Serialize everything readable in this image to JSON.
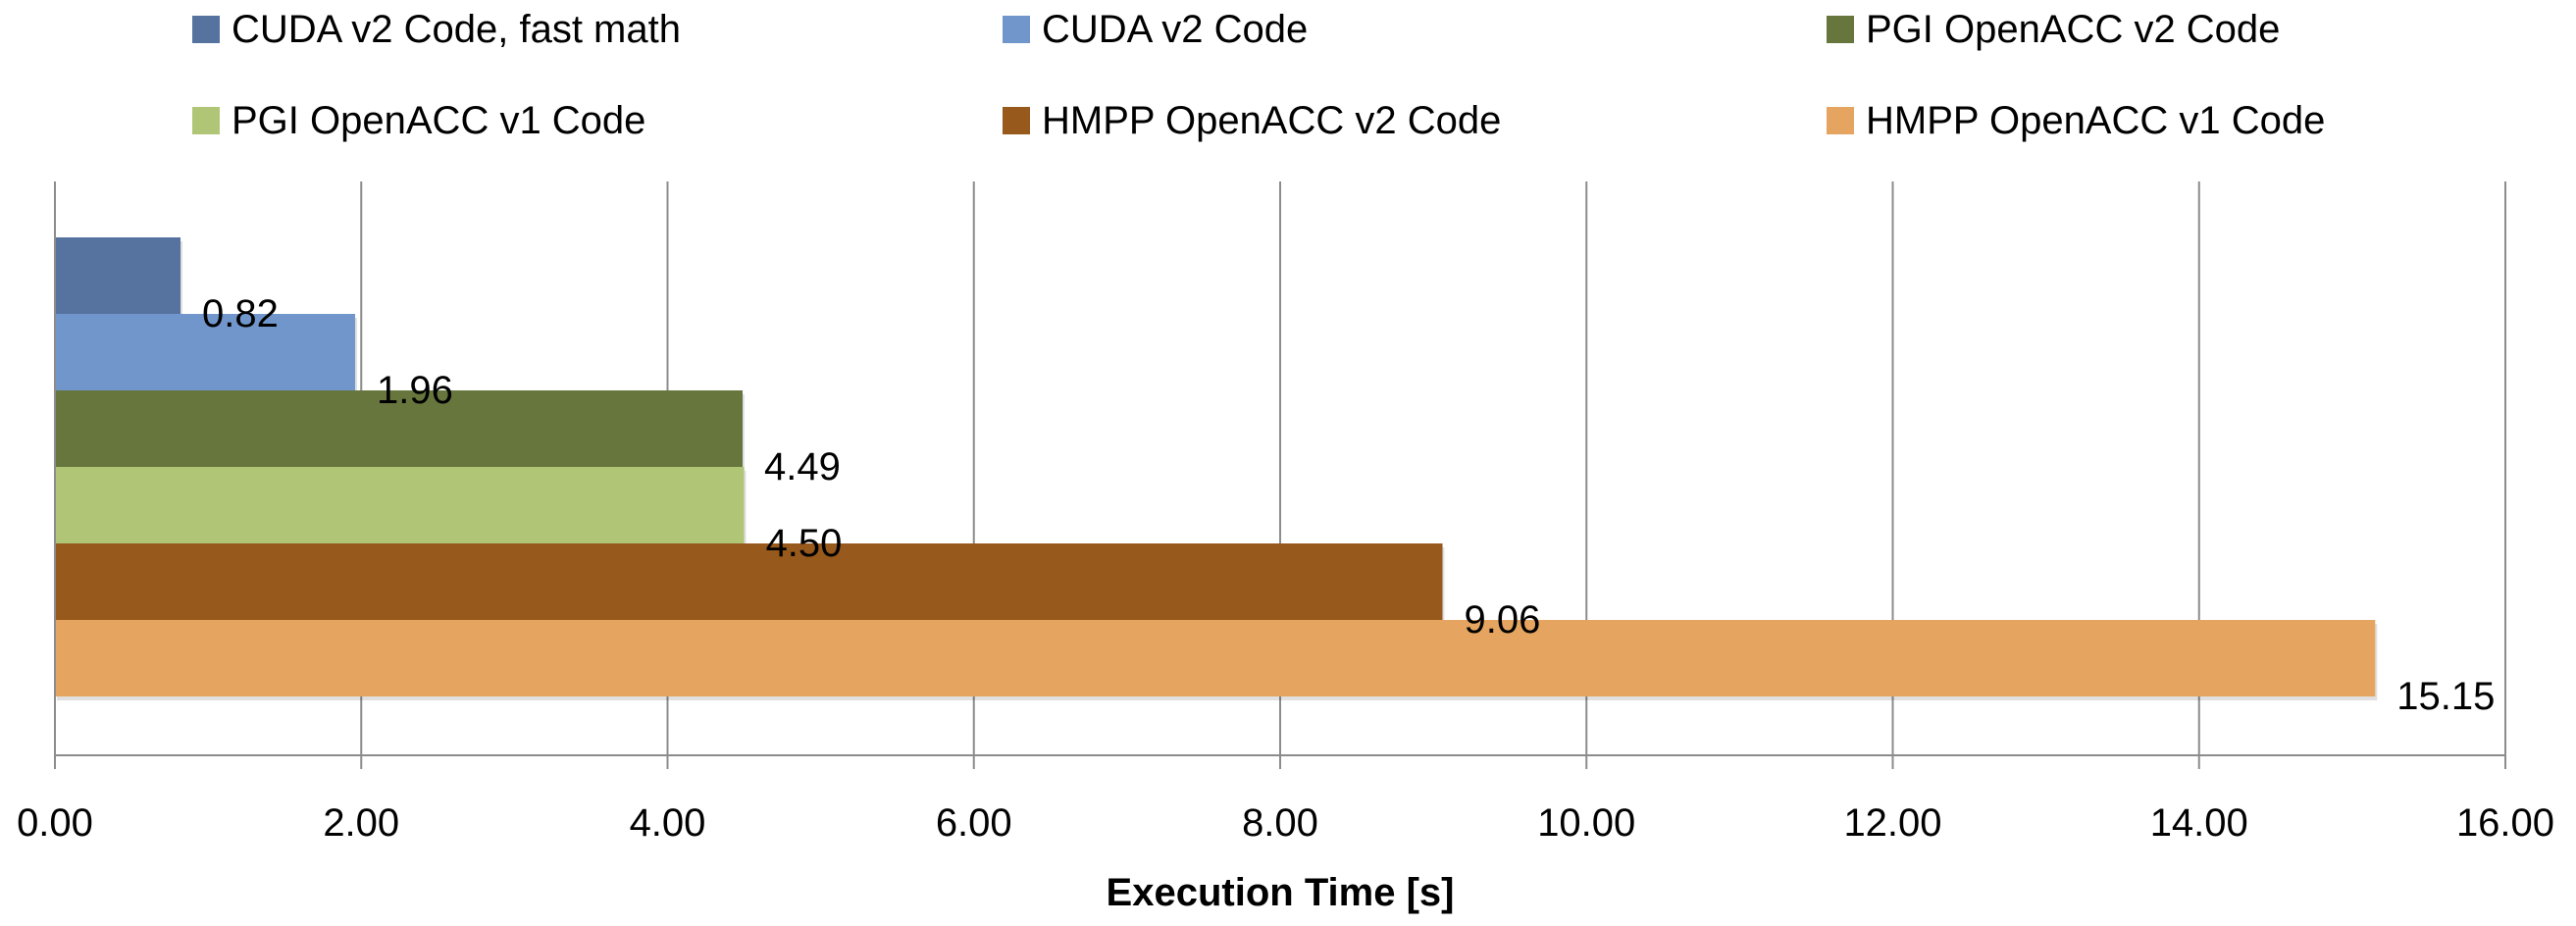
{
  "chart_data": {
    "type": "bar",
    "orientation": "horizontal",
    "xlabel": "Execution Time [s]",
    "ylabel": "",
    "xlim": [
      0,
      16
    ],
    "x_ticks": [
      "0.00",
      "2.00",
      "4.00",
      "6.00",
      "8.00",
      "10.00",
      "12.00",
      "14.00",
      "16.00"
    ],
    "grid": "vertical",
    "legend_position": "top",
    "series": [
      {
        "name": "CUDA v2 Code, fast math",
        "value": 0.82,
        "label": "0.82",
        "color": "#56729F"
      },
      {
        "name": "CUDA v2 Code",
        "value": 1.96,
        "label": "1.96",
        "color": "#7196CC"
      },
      {
        "name": "PGI OpenACC v2 Code",
        "value": 4.49,
        "label": "4.49",
        "color": "#67763D"
      },
      {
        "name": "PGI OpenACC v1 Code",
        "value": 4.5,
        "label": "4.50",
        "color": "#B1C577"
      },
      {
        "name": "HMPP OpenACC v2 Code",
        "value": 9.06,
        "label": "9.06",
        "color": "#97591C"
      },
      {
        "name": "HMPP OpenACC v1 Code",
        "value": 15.15,
        "label": "15.15",
        "color": "#E5A560"
      }
    ]
  }
}
